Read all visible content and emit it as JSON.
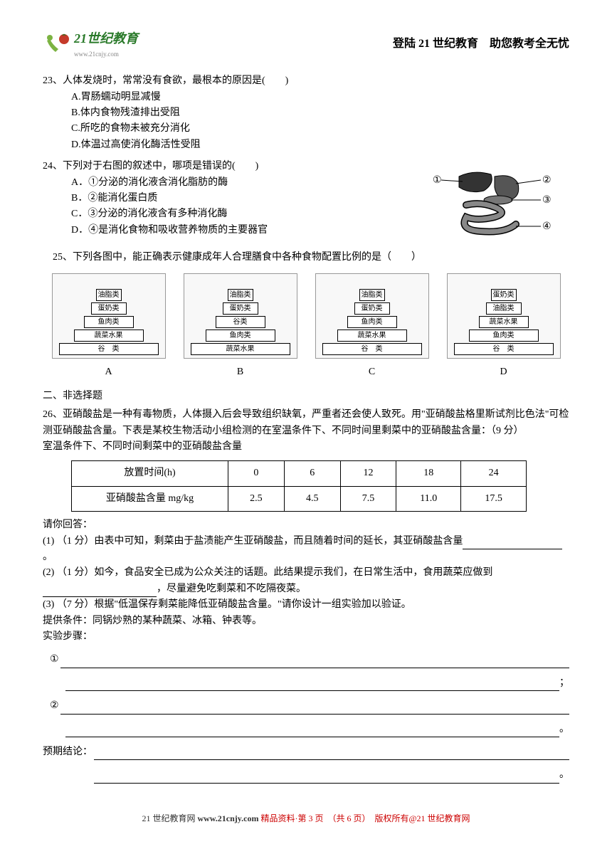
{
  "header": {
    "logo_text": "21世纪教育",
    "logo_sub": "www.21cnjy.com",
    "title": "登陆 21 世纪教育　助您教考全无忧"
  },
  "q23": {
    "stem": "23、人体发烧时，常常没有食欲，最根本的原因是(　　)",
    "A": "A.胃肠蠕动明显减慢",
    "B": "B.体内食物残渣排出受阻",
    "C": "C.所吃的食物未被充分消化",
    "D": "D.体温过高使消化酶活性受阻"
  },
  "q24": {
    "stem": "24、下列对于右图的叙述中，哪项是错误的(　　)",
    "A": "A．①分泌的消化液含消化脂肪的酶",
    "B": "B．②能消化蛋白质",
    "C": "C．③分泌的消化液含有多种消化酶",
    "D": "D．④是消化食物和吸收营养物质的主要器官",
    "labels": {
      "l1": "①",
      "l2": "②",
      "l3": "③",
      "l4": "④"
    }
  },
  "q25": {
    "stem": "25、下列各图中，能正确表示健康成年人合理膳食中各种食物配置比例的是（　　）",
    "pyramids": {
      "A": {
        "levels": [
          "油脂类",
          "蛋奶类",
          "鱼肉类",
          "蔬菜水果",
          "谷　类"
        ],
        "widths": [
          36,
          50,
          70,
          98,
          140
        ]
      },
      "B": {
        "levels": [
          "油脂类",
          "蛋奶类",
          "谷类",
          "鱼肉类",
          "蔬菜水果"
        ],
        "widths": [
          36,
          50,
          70,
          98,
          140
        ]
      },
      "C": {
        "levels": [
          "油脂类",
          "蛋奶类",
          "鱼肉类",
          "蔬菜水果",
          "谷　类"
        ],
        "widths": [
          36,
          50,
          70,
          98,
          140
        ]
      },
      "D": {
        "levels": [
          "蛋奶类",
          "油脂类",
          "蔬菜水果",
          "鱼肉类",
          "谷　类"
        ],
        "widths": [
          36,
          50,
          70,
          98,
          140
        ]
      }
    },
    "option_labels": [
      "A",
      "B",
      "C",
      "D"
    ]
  },
  "section2": "二、非选择题",
  "q26": {
    "stem1": "26、亚硝酸盐是一种有毒物质，人体摄入后会导致组织缺氧，严重者还会使人致死。用\"亚硝酸盐格里斯试剂比色法\"可检测亚硝酸盐含量。下表是某校生物活动小组检测的在室温条件下、不同时间里剩菜中的亚硝酸盐含量：（9 分）",
    "stem2": "室温条件下、不同时间剩菜中的亚硝酸盐含量",
    "table": {
      "head_row": "放置时间(h)",
      "head_vals": [
        "0",
        "6",
        "12",
        "18",
        "24"
      ],
      "data_row": "亚硝酸盐含量 mg/kg",
      "data_vals": [
        "2.5",
        "4.5",
        "7.5",
        "11.0",
        "17.5"
      ]
    },
    "answer_head": "请你回答：",
    "p1a": "(1) （1 分）由表中可知，剩菜由于盐渍能产生亚硝酸盐，而且随着时间的延长，其亚硝酸盐含量",
    "p1b": "。",
    "p2a": "(2) （1 分）如今，食品安全已成为公众关注的话题。此结果提示我们，在日常生活中，食用蔬菜应做到",
    "p2b": "，尽量避免吃剩菜和不吃隔夜菜。",
    "p3": "(3) （7 分）根据\"低温保存剩菜能降低亚硝酸盐含量。\"请你设计一组实验加以验证。",
    "p3a": "提供条件：同锅炒熟的某种蔬菜、冰箱、钟表等。",
    "p3b": "实验步骤：",
    "step1": "①",
    "step_semi": "；",
    "step2": "②",
    "step_period": "。",
    "p3c": "预期结论："
  },
  "footer": {
    "left": "21 世纪教育网",
    "site": "www.21cnjy.com",
    "mid": "精品资料·第 3 页　（共 6 页）　版权所有@21 世纪教育网"
  },
  "colors": {
    "logo_green": "#2a7a2a",
    "logo_red": "#c53a2a",
    "footer_red": "#c00"
  }
}
